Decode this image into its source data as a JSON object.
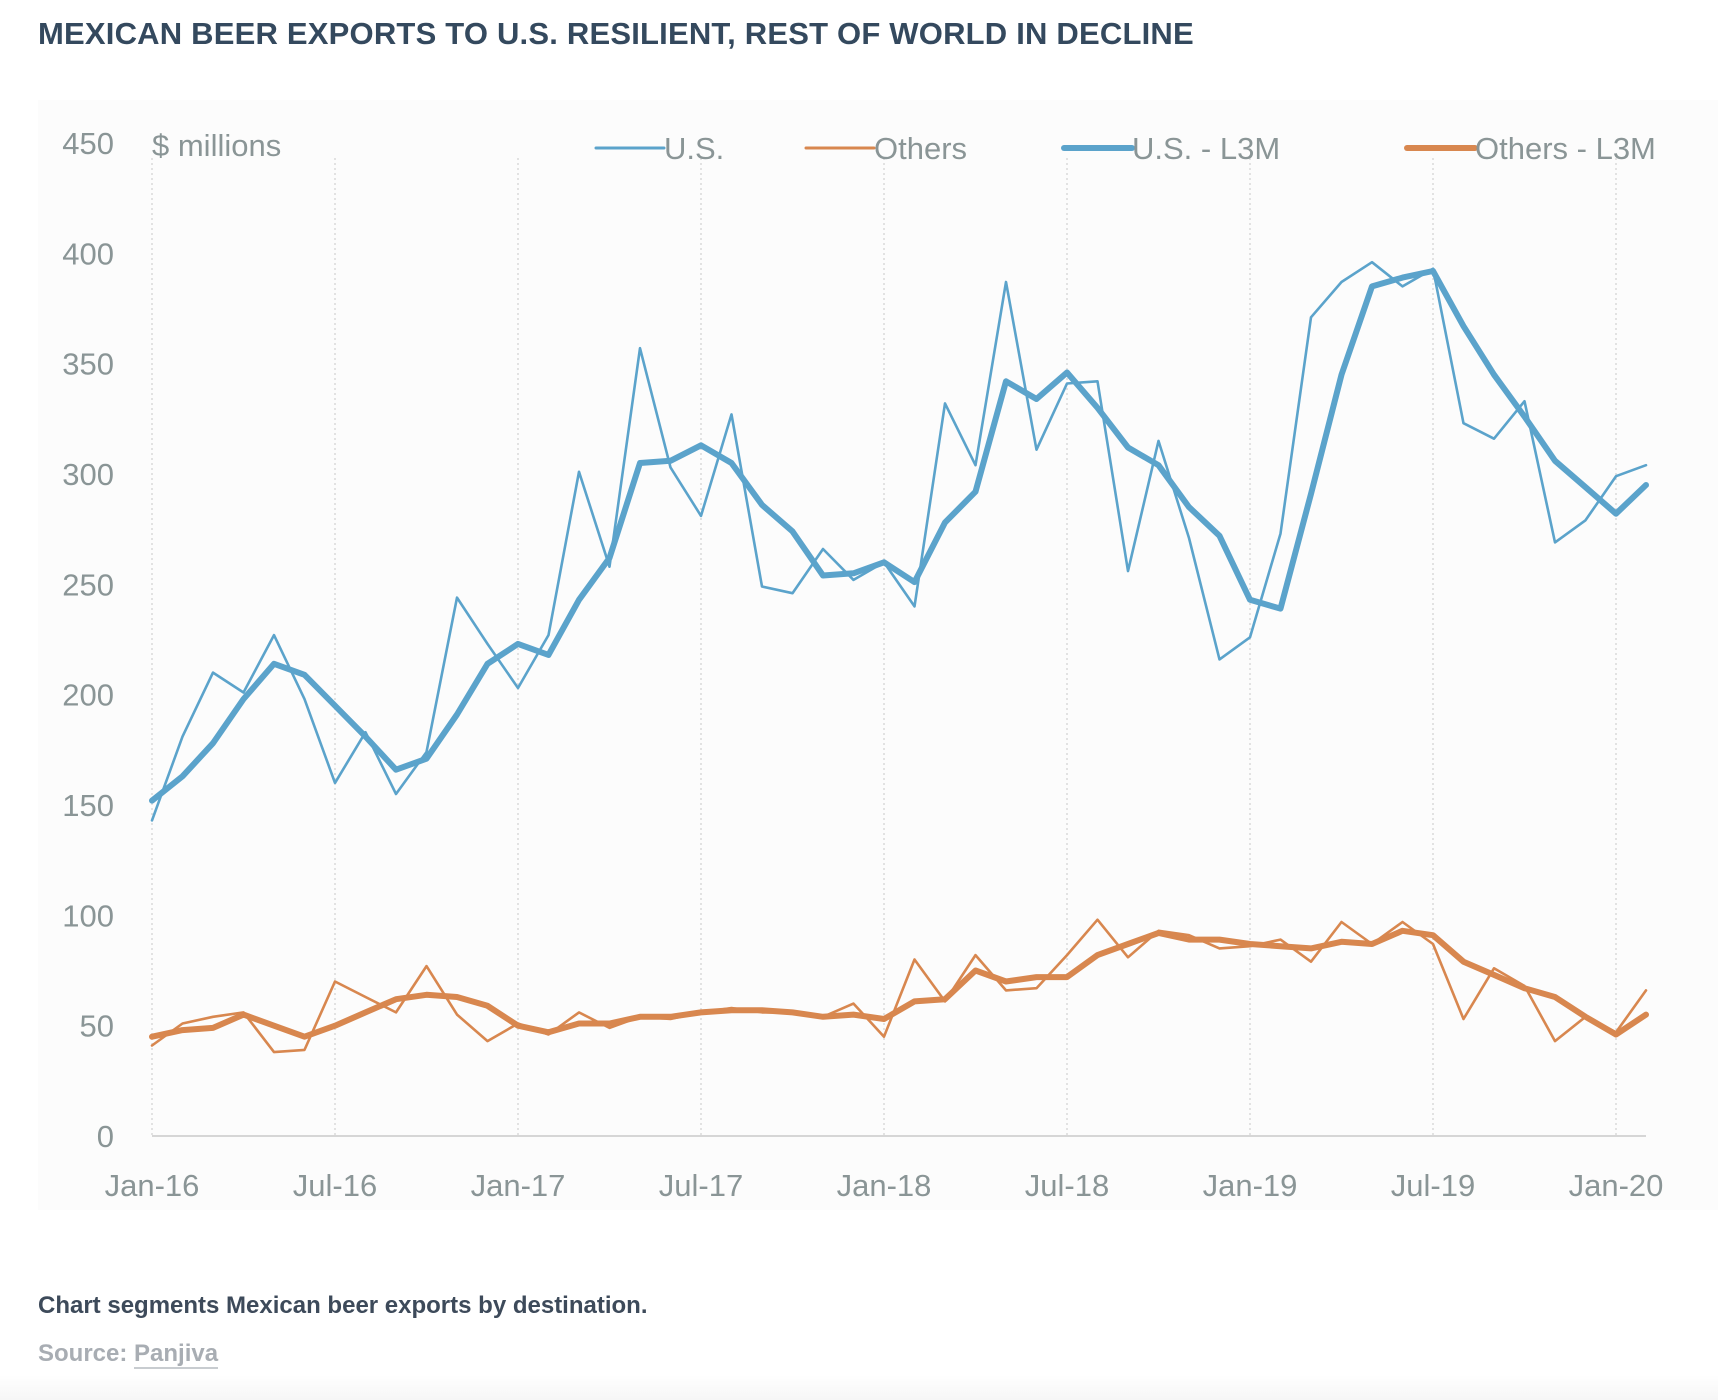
{
  "header": {
    "title": "MEXICAN BEER EXPORTS TO U.S. RESILIENT, REST OF WORLD IN DECLINE"
  },
  "footer": {
    "caption": "Chart segments Mexican beer exports by destination.",
    "source_label": "Source:",
    "source_link": "Panjiva"
  },
  "colors": {
    "us": "#5ba3cb",
    "others": "#d8874f",
    "text": "#34495e",
    "axis_text": "#8a9596",
    "grid": "#d8d8d8"
  },
  "chart_data": {
    "type": "line",
    "title": "MEXICAN BEER EXPORTS TO U.S. RESILIENT, REST OF WORLD IN DECLINE",
    "ylabel": "$ millions",
    "xlabel": "",
    "ylim": [
      0,
      450
    ],
    "yticks": [
      0,
      50,
      100,
      150,
      200,
      250,
      300,
      350,
      400,
      450
    ],
    "xtick_labels": [
      "Jan-16",
      "Jul-16",
      "Jan-17",
      "Jul-17",
      "Jan-18",
      "Jul-18",
      "Jan-19",
      "Jul-19",
      "Jan-20"
    ],
    "xtick_index": [
      0,
      6,
      12,
      18,
      24,
      30,
      36,
      42,
      48
    ],
    "x": [
      "Jan-16",
      "Feb-16",
      "Mar-16",
      "Apr-16",
      "May-16",
      "Jun-16",
      "Jul-16",
      "Aug-16",
      "Sep-16",
      "Oct-16",
      "Nov-16",
      "Dec-16",
      "Jan-17",
      "Feb-17",
      "Mar-17",
      "Apr-17",
      "May-17",
      "Jun-17",
      "Jul-17",
      "Aug-17",
      "Sep-17",
      "Oct-17",
      "Nov-17",
      "Dec-17",
      "Jan-18",
      "Feb-18",
      "Mar-18",
      "Apr-18",
      "May-18",
      "Jun-18",
      "Jul-18",
      "Aug-18",
      "Sep-18",
      "Oct-18",
      "Nov-18",
      "Dec-18",
      "Jan-19",
      "Feb-19",
      "Mar-19",
      "Apr-19",
      "May-19",
      "Jun-19",
      "Jul-19",
      "Aug-19",
      "Sep-19",
      "Oct-19",
      "Nov-19",
      "Dec-19",
      "Jan-20",
      "Feb-20"
    ],
    "grid": "vertical dotted at x ticks",
    "legend": "top",
    "series": [
      {
        "name": "U.S.",
        "style": "thin",
        "color": "#5ba3cb",
        "values": [
          143,
          181,
          210,
          201,
          227,
          198,
          160,
          183,
          155,
          174,
          244,
          223,
          203,
          227,
          301,
          258,
          357,
          303,
          281,
          327,
          249,
          246,
          266,
          252,
          260,
          240,
          332,
          304,
          387,
          311,
          341,
          342,
          256,
          315,
          271,
          216,
          226,
          273,
          371,
          387,
          396,
          385,
          393,
          323,
          316,
          333,
          269,
          279,
          299,
          304
        ]
      },
      {
        "name": "Others",
        "style": "thin",
        "color": "#d8874f",
        "values": [
          41,
          51,
          54,
          56,
          38,
          39,
          70,
          63,
          56,
          77,
          55,
          43,
          51,
          46,
          56,
          49,
          54,
          53,
          56,
          58,
          56,
          56,
          54,
          60,
          45,
          80,
          61,
          82,
          66,
          67,
          82,
          98,
          81,
          93,
          91,
          85,
          86,
          89,
          79,
          97,
          87,
          97,
          87,
          53,
          76,
          68,
          43,
          54,
          47,
          66
        ]
      },
      {
        "name": "U.S. - L3M",
        "style": "thick",
        "color": "#5ba3cb",
        "values": [
          152,
          163,
          178,
          198,
          214,
          209,
          195,
          181,
          166,
          171,
          191,
          214,
          223,
          218,
          243,
          262,
          305,
          306,
          313,
          305,
          286,
          274,
          254,
          255,
          260,
          251,
          278,
          292,
          342,
          334,
          346,
          330,
          312,
          304,
          285,
          272,
          243,
          239,
          291,
          345,
          385,
          389,
          392,
          367,
          345,
          326,
          306,
          294,
          282,
          295
        ]
      },
      {
        "name": "Others - L3M",
        "style": "thick",
        "color": "#d8874f",
        "values": [
          45,
          48,
          49,
          55,
          50,
          45,
          50,
          56,
          62,
          64,
          63,
          59,
          50,
          47,
          51,
          51,
          54,
          54,
          56,
          57,
          57,
          56,
          54,
          55,
          53,
          61,
          62,
          75,
          70,
          72,
          72,
          82,
          87,
          92,
          89,
          89,
          87,
          86,
          85,
          88,
          87,
          93,
          91,
          79,
          73,
          67,
          63,
          54,
          46,
          55
        ]
      }
    ]
  }
}
